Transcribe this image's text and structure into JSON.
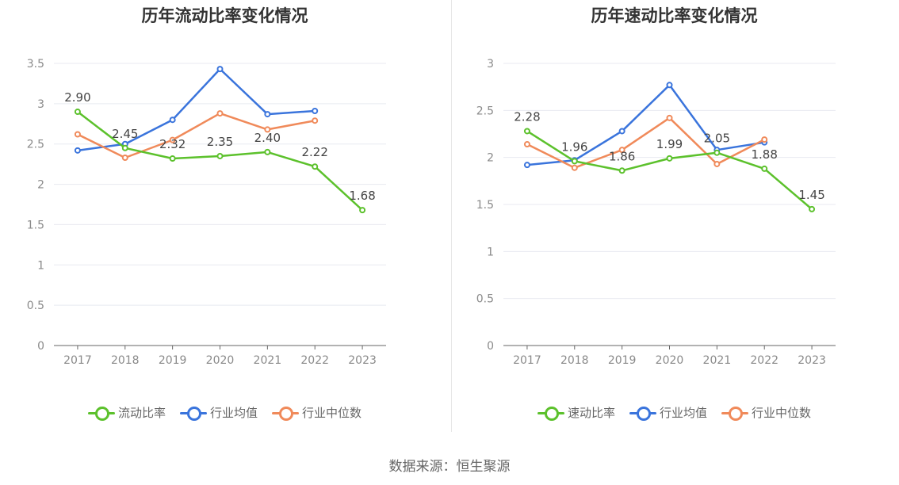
{
  "source_text": "数据来源：恒生聚源",
  "colors": {
    "ratio": "#5cc12c",
    "industry_avg": "#3a74dc",
    "industry_median": "#f08a5a",
    "grid": "#e8eaf0",
    "axis": "#666666",
    "tick_label": "#8a8a8a",
    "data_label": "#444444"
  },
  "chart_data": [
    {
      "type": "line",
      "title": "历年流动比率变化情况",
      "categories": [
        "2017",
        "2018",
        "2019",
        "2020",
        "2021",
        "2022",
        "2023"
      ],
      "ylim": [
        0,
        3.5
      ],
      "yticks": [
        0,
        0.5,
        1,
        1.5,
        2,
        2.5,
        3,
        3.5
      ],
      "ytick_labels": [
        "0",
        "0.5",
        "1",
        "1.5",
        "2",
        "2.5",
        "3",
        "3.5"
      ],
      "grid": true,
      "legend_position": "bottom",
      "series": [
        {
          "name": "流动比率",
          "key": "ratio",
          "values": [
            2.9,
            2.45,
            2.32,
            2.35,
            2.4,
            2.22,
            1.68
          ],
          "labels": [
            "2.90",
            "2.45",
            "2.32",
            "2.35",
            "2.40",
            "2.22",
            "1.68"
          ]
        },
        {
          "name": "行业均值",
          "key": "industry_avg",
          "values": [
            2.42,
            2.5,
            2.8,
            3.43,
            2.87,
            2.91,
            null
          ]
        },
        {
          "name": "行业中位数",
          "key": "industry_median",
          "values": [
            2.62,
            2.33,
            2.55,
            2.88,
            2.68,
            2.79,
            null
          ]
        }
      ]
    },
    {
      "type": "line",
      "title": "历年速动比率变化情况",
      "categories": [
        "2017",
        "2018",
        "2019",
        "2020",
        "2021",
        "2022",
        "2023"
      ],
      "ylim": [
        0,
        3
      ],
      "yticks": [
        0,
        0.5,
        1,
        1.5,
        2,
        2.5,
        3
      ],
      "ytick_labels": [
        "0",
        "0.5",
        "1",
        "1.5",
        "2",
        "2.5",
        "3"
      ],
      "grid": true,
      "legend_position": "bottom",
      "series": [
        {
          "name": "速动比率",
          "key": "ratio",
          "values": [
            2.28,
            1.96,
            1.86,
            1.99,
            2.05,
            1.88,
            1.45
          ],
          "labels": [
            "2.28",
            "1.96",
            "1.86",
            "1.99",
            "2.05",
            "1.88",
            "1.45"
          ]
        },
        {
          "name": "行业均值",
          "key": "industry_avg",
          "values": [
            1.92,
            1.97,
            2.28,
            2.77,
            2.08,
            2.16,
            null
          ]
        },
        {
          "name": "行业中位数",
          "key": "industry_median",
          "values": [
            2.14,
            1.89,
            2.08,
            2.42,
            1.93,
            2.19,
            null
          ]
        }
      ]
    }
  ]
}
